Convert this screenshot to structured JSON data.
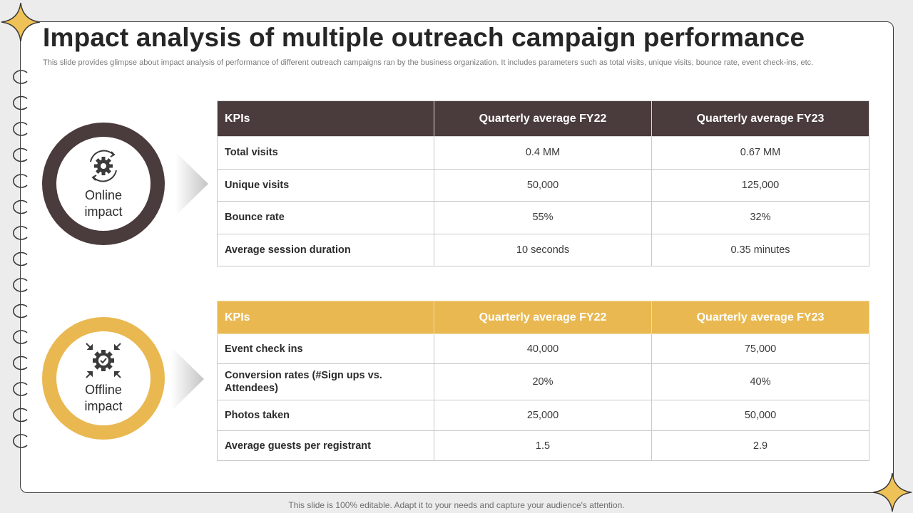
{
  "slide": {
    "title": "Impact analysis of multiple outreach campaign performance",
    "subtitle": "This slide provides glimpse about impact analysis of performance of different outreach campaigns ran by the business organization. It includes parameters such as total visits, unique visits, bounce rate, event check-ins, etc.",
    "footer": "This slide is 100% editable. Adapt it to your needs and capture your audience's attention."
  },
  "colors": {
    "dark": "#4a3b3c",
    "gold": "#e9b851",
    "text": "#262626"
  },
  "online": {
    "label_line1": "Online",
    "label_line2": "impact",
    "icon": "gear-cycle-icon",
    "table": {
      "headers": [
        "KPIs",
        "Quarterly average FY22",
        "Quarterly average FY23"
      ],
      "rows": [
        {
          "kpi": "Total visits",
          "fy22": "0.4 MM",
          "fy23": "0.67 MM"
        },
        {
          "kpi": "Unique visits",
          "fy22": "50,000",
          "fy23": "125,000"
        },
        {
          "kpi": "Bounce rate",
          "fy22": "55%",
          "fy23": "32%"
        },
        {
          "kpi": "Average session duration",
          "fy22": "10 seconds",
          "fy23": "0.35 minutes"
        }
      ]
    }
  },
  "offline": {
    "label_line1": "Offline",
    "label_line2": "impact",
    "icon": "gear-check-arrows-icon",
    "table": {
      "headers": [
        "KPIs",
        "Quarterly average FY22",
        "Quarterly average FY23"
      ],
      "rows": [
        {
          "kpi": "Event check ins",
          "fy22": "40,000",
          "fy23": "75,000"
        },
        {
          "kpi": "Conversion rates (#Sign ups vs. Attendees)",
          "fy22": "20%",
          "fy23": "40%"
        },
        {
          "kpi": "Photos taken",
          "fy22": "25,000",
          "fy23": "50,000"
        },
        {
          "kpi": "Average guests per registrant",
          "fy22": "1.5",
          "fy23": "2.9"
        }
      ]
    }
  }
}
